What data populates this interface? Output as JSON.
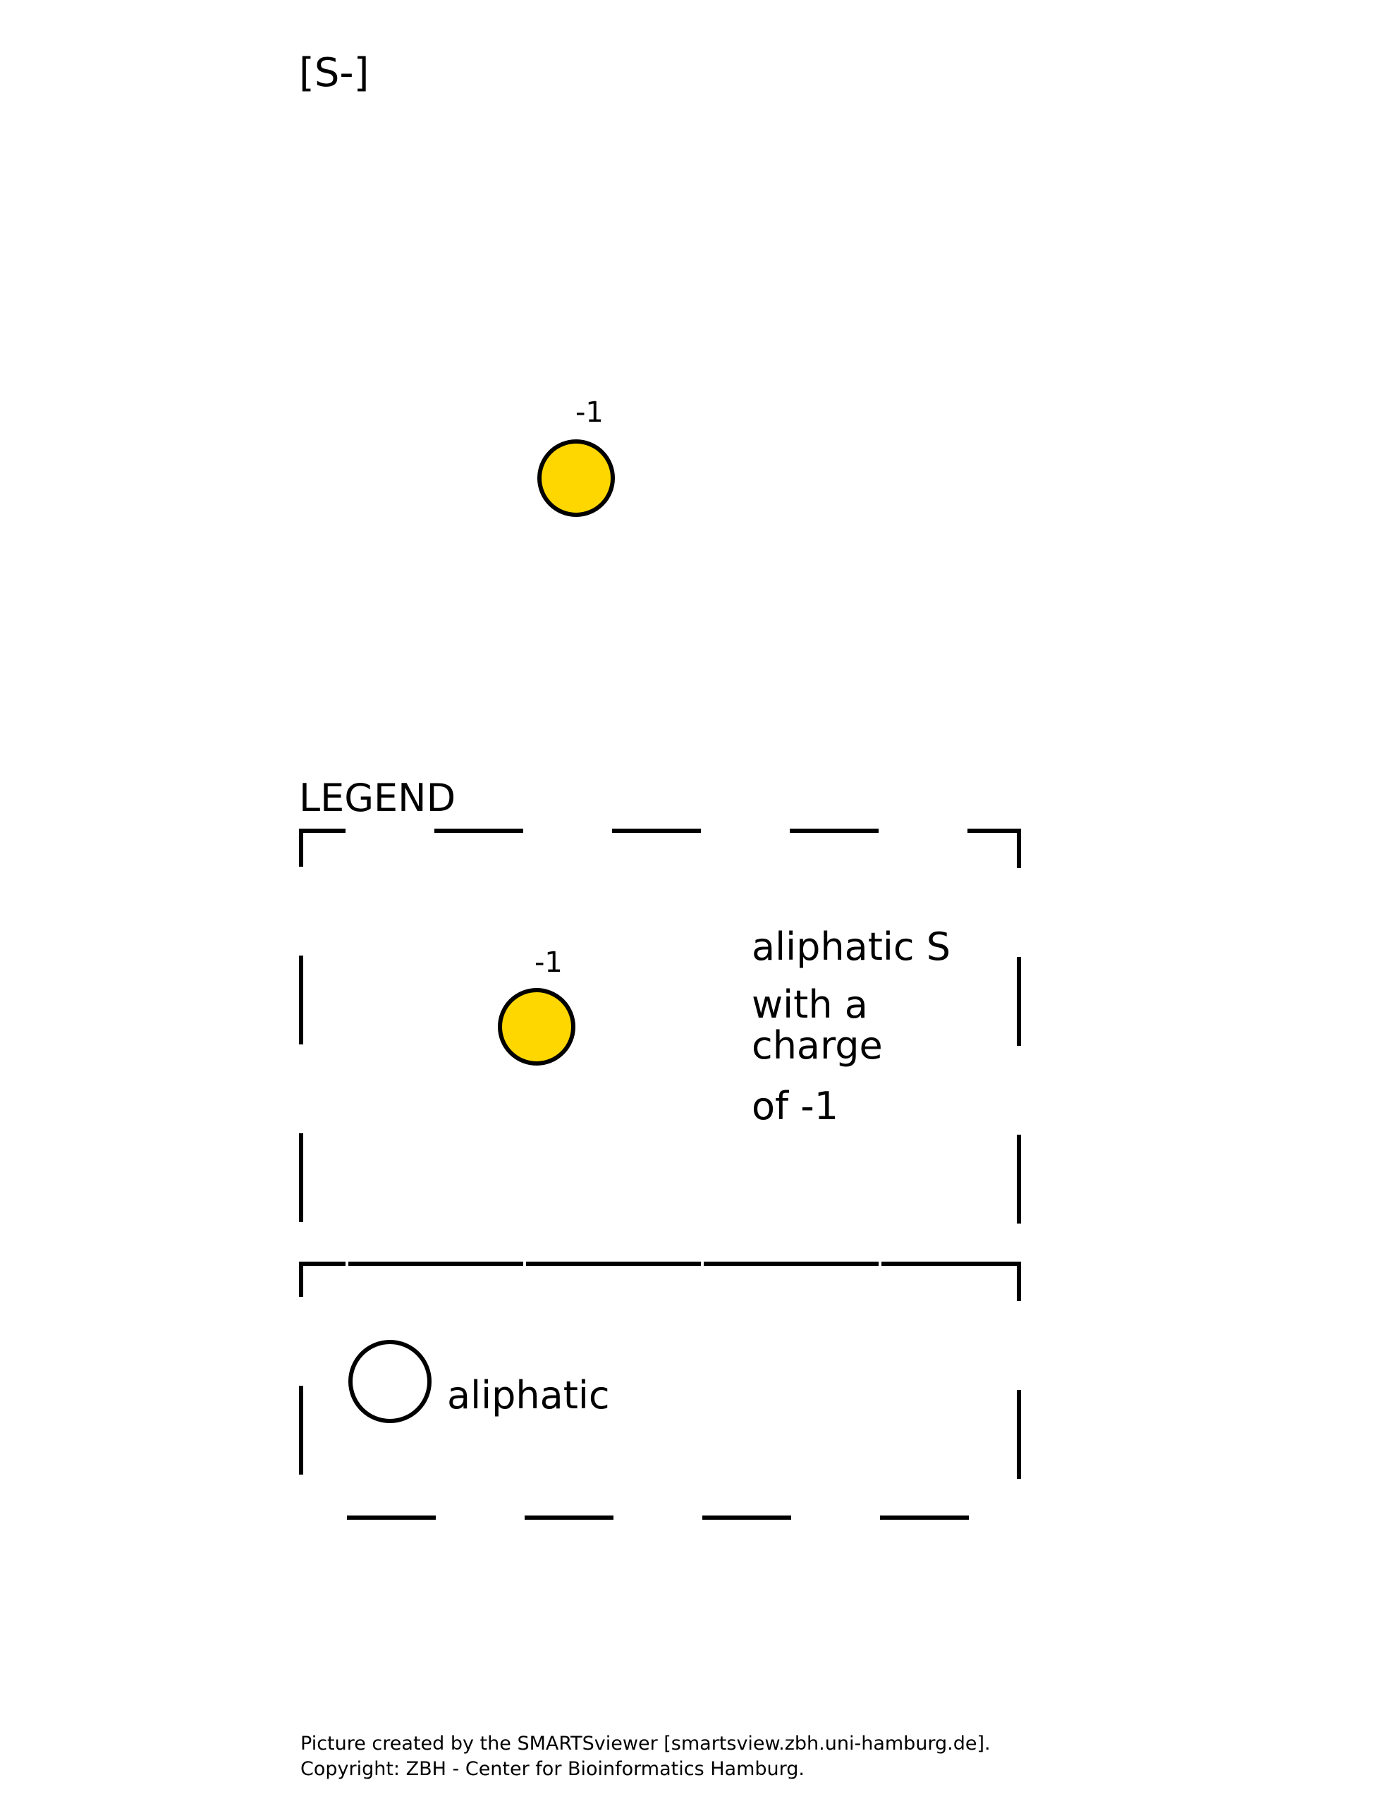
{
  "smarts": "[S-]",
  "atom": {
    "element": "S",
    "charge_label": "-1",
    "fill": "#FFD700",
    "stroke": "#000000"
  },
  "legend": {
    "title": "LEGEND",
    "entries": [
      {
        "charge_label": "-1",
        "description_lines": [
          "aliphatic S",
          "with a",
          "charge",
          "of -1"
        ]
      },
      {
        "description": "aliphatic"
      }
    ]
  },
  "footer": {
    "line1": "Picture created by the SMARTSviewer [smartsview.zbh.uni-hamburg.de].",
    "line2": "Copyright: ZBH - Center for Bioinformatics Hamburg."
  },
  "colors": {
    "atom_fill": "#FFD700",
    "outline": "#000000",
    "background": "#FFFFFF"
  }
}
